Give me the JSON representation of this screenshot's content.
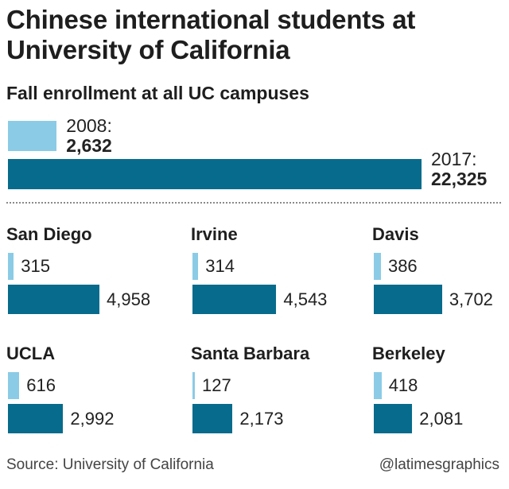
{
  "chart_data": [
    {
      "type": "bar",
      "title": "Chinese international students at University of California",
      "subtitle": "Fall enrollment at all UC campuses",
      "series": [
        {
          "name": "2008",
          "values": [
            2632
          ]
        },
        {
          "name": "2017",
          "values": [
            22325
          ]
        }
      ],
      "labels": {
        "y2008": "2008:",
        "v2008": "2,632",
        "y2017": "2017:",
        "v2017": "22,325"
      }
    },
    {
      "type": "bar",
      "categories": [
        "San Diego",
        "Irvine",
        "Davis",
        "UCLA",
        "Santa Barbara",
        "Berkeley"
      ],
      "series": [
        {
          "name": "2008",
          "values": [
            315,
            314,
            386,
            616,
            127,
            418
          ]
        },
        {
          "name": "2017",
          "values": [
            4958,
            4543,
            3702,
            2992,
            2173,
            2081
          ]
        }
      ],
      "value_labels": {
        "2008": [
          "315",
          "314",
          "386",
          "616",
          "127",
          "418"
        ],
        "2017": [
          "4,958",
          "4,543",
          "3,702",
          "2,992",
          "2,173",
          "2,081"
        ]
      },
      "colors": {
        "2008": "#8ccbe6",
        "2017": "#066b8c"
      }
    }
  ],
  "footer": {
    "source": "Source: University of California",
    "credit": "@latimesgraphics"
  }
}
